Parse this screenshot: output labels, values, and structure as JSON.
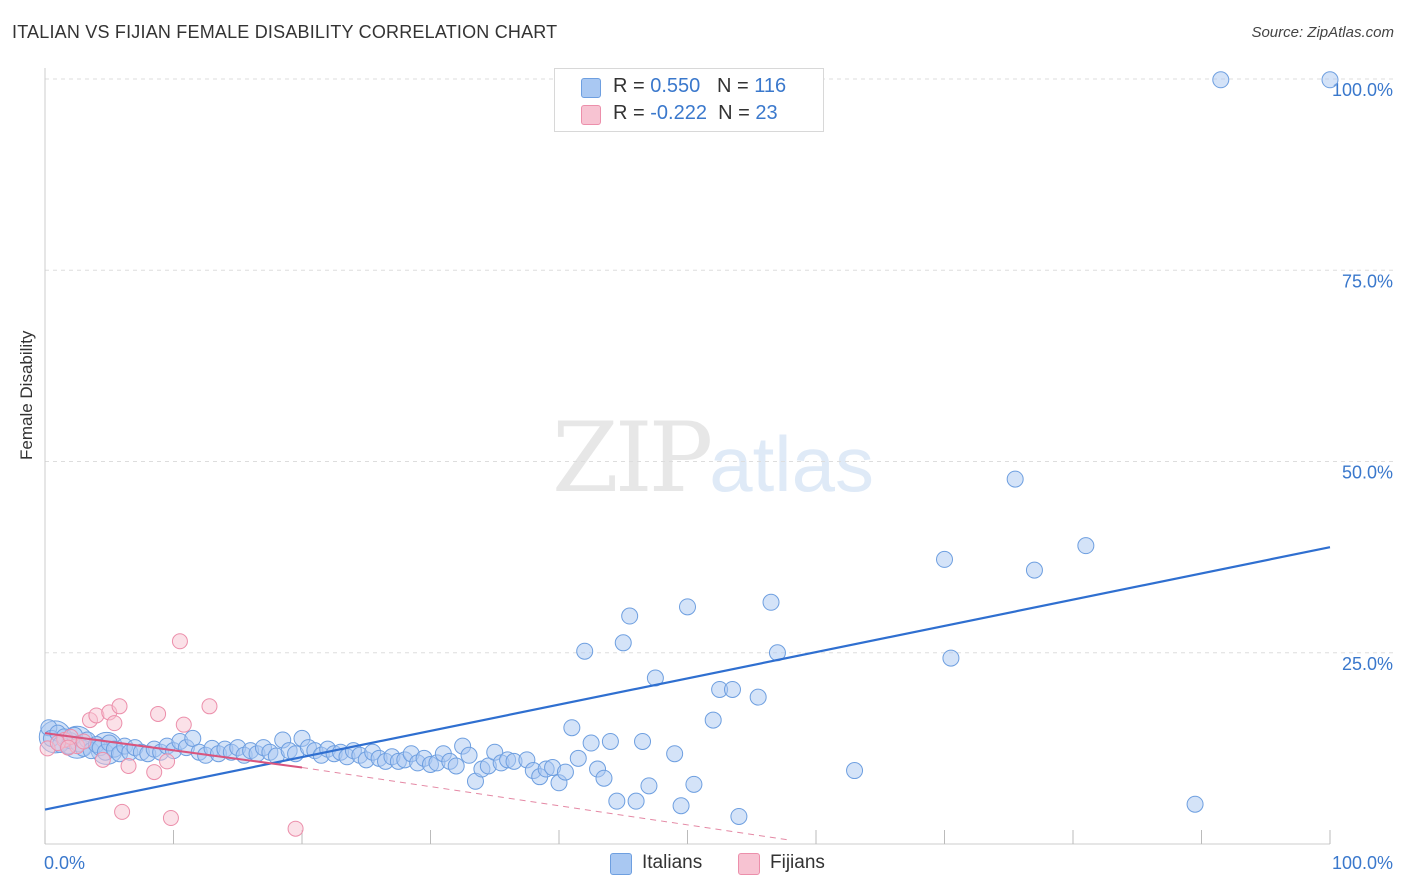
{
  "title": "ITALIAN VS FIJIAN FEMALE DISABILITY CORRELATION CHART",
  "source": "Source: ZipAtlas.com",
  "watermark": {
    "zip": "ZIP",
    "atlas": "atlas"
  },
  "legend": {
    "rows": [
      {
        "r_label": "R = ",
        "r_value": "0.550",
        "n_label": "N = ",
        "n_value": "116",
        "color": "#a9c8f2",
        "border": "#6e9fe0"
      },
      {
        "r_label": "R = ",
        "r_value": "-0.222",
        "n_label": "N = ",
        "n_value": "23",
        "color": "#f7c3d2",
        "border": "#ec8fab"
      }
    ]
  },
  "bottom_legend": [
    {
      "label": "Italians",
      "color": "#a9c8f2",
      "border": "#6e9fe0"
    },
    {
      "label": "Fijians",
      "color": "#f7c3d2",
      "border": "#ec8fab"
    }
  ],
  "chart_data": {
    "type": "scatter",
    "title": "ITALIAN VS FIJIAN FEMALE DISABILITY CORRELATION CHART",
    "xlabel": "",
    "ylabel": "Female Disability",
    "xlim": [
      0,
      100
    ],
    "ylim": [
      0,
      100
    ],
    "x_tick_labels": [
      "0.0%",
      "100.0%"
    ],
    "y_tick_labels": [
      {
        "value": 25,
        "label": "25.0%"
      },
      {
        "value": 50,
        "label": "50.0%"
      },
      {
        "value": 75,
        "label": "75.0%"
      },
      {
        "value": 100,
        "label": "100.0%"
      }
    ],
    "series": [
      {
        "name": "Italians",
        "color": "#6e9fe0",
        "fill": "#a9c8f2",
        "trend": {
          "x": [
            0,
            100
          ],
          "y": [
            4.5,
            38.8
          ],
          "color": "#2f6fd0"
        },
        "points": [
          [
            0.3,
            15.2
          ],
          [
            0.5,
            13.8
          ],
          [
            1.0,
            14.5
          ],
          [
            1.2,
            13.0
          ],
          [
            1.5,
            14.0
          ],
          [
            1.8,
            12.8
          ],
          [
            2.0,
            13.5
          ],
          [
            2.3,
            14.2
          ],
          [
            2.6,
            13.1
          ],
          [
            3.0,
            12.5
          ],
          [
            3.3,
            13.6
          ],
          [
            3.6,
            12.2
          ],
          [
            4.0,
            13.0
          ],
          [
            4.3,
            12.6
          ],
          [
            4.7,
            12.0
          ],
          [
            5.0,
            13.2
          ],
          [
            5.4,
            12.4
          ],
          [
            5.8,
            11.8
          ],
          [
            6.2,
            12.8
          ],
          [
            6.6,
            12.0
          ],
          [
            7.0,
            12.6
          ],
          [
            7.5,
            12.0
          ],
          [
            8.0,
            11.8
          ],
          [
            8.5,
            12.4
          ],
          [
            9.0,
            12.0
          ],
          [
            9.5,
            12.8
          ],
          [
            10.0,
            12.2
          ],
          [
            10.5,
            13.4
          ],
          [
            11.0,
            12.6
          ],
          [
            11.5,
            13.8
          ],
          [
            12.0,
            12.0
          ],
          [
            12.5,
            11.6
          ],
          [
            13.0,
            12.5
          ],
          [
            13.5,
            11.8
          ],
          [
            14.0,
            12.4
          ],
          [
            14.5,
            12.0
          ],
          [
            15.0,
            12.6
          ],
          [
            15.5,
            11.6
          ],
          [
            16.0,
            12.2
          ],
          [
            16.5,
            11.8
          ],
          [
            17.0,
            12.6
          ],
          [
            17.5,
            12.0
          ],
          [
            18.0,
            11.5
          ],
          [
            18.5,
            13.6
          ],
          [
            19.0,
            12.2
          ],
          [
            19.5,
            11.8
          ],
          [
            20.0,
            13.8
          ],
          [
            20.5,
            12.6
          ],
          [
            21.0,
            12.2
          ],
          [
            21.5,
            11.6
          ],
          [
            22.0,
            12.4
          ],
          [
            22.5,
            11.8
          ],
          [
            23.0,
            12.0
          ],
          [
            23.5,
            11.4
          ],
          [
            24.0,
            12.2
          ],
          [
            24.5,
            11.6
          ],
          [
            25.0,
            11.0
          ],
          [
            25.5,
            12.0
          ],
          [
            26.0,
            11.2
          ],
          [
            26.5,
            10.8
          ],
          [
            27.0,
            11.4
          ],
          [
            27.5,
            10.8
          ],
          [
            28.0,
            11.0
          ],
          [
            28.5,
            11.8
          ],
          [
            29.0,
            10.6
          ],
          [
            29.5,
            11.2
          ],
          [
            30.0,
            10.4
          ],
          [
            30.5,
            10.6
          ],
          [
            31.0,
            11.8
          ],
          [
            31.5,
            10.8
          ],
          [
            32.0,
            10.2
          ],
          [
            32.5,
            12.8
          ],
          [
            33.0,
            11.6
          ],
          [
            33.5,
            8.2
          ],
          [
            34.0,
            9.8
          ],
          [
            34.5,
            10.2
          ],
          [
            35.0,
            12.0
          ],
          [
            35.5,
            10.6
          ],
          [
            36.0,
            11.0
          ],
          [
            36.5,
            10.8
          ],
          [
            37.5,
            11.0
          ],
          [
            38.0,
            9.6
          ],
          [
            38.5,
            8.8
          ],
          [
            39.0,
            9.8
          ],
          [
            39.5,
            10.0
          ],
          [
            40.0,
            8.0
          ],
          [
            40.5,
            9.4
          ],
          [
            41.0,
            15.2
          ],
          [
            41.5,
            11.2
          ],
          [
            42.0,
            25.2
          ],
          [
            42.5,
            13.2
          ],
          [
            43.0,
            9.8
          ],
          [
            43.5,
            8.6
          ],
          [
            44.0,
            13.4
          ],
          [
            44.5,
            5.6
          ],
          [
            45.0,
            26.3
          ],
          [
            45.5,
            29.8
          ],
          [
            46.0,
            5.6
          ],
          [
            46.5,
            13.4
          ],
          [
            47.0,
            7.6
          ],
          [
            47.5,
            21.7
          ],
          [
            49.0,
            11.8
          ],
          [
            49.5,
            5.0
          ],
          [
            50.0,
            31.0
          ],
          [
            50.5,
            7.8
          ],
          [
            52.0,
            16.2
          ],
          [
            52.5,
            20.2
          ],
          [
            53.5,
            20.2
          ],
          [
            54.0,
            3.6
          ],
          [
            55.5,
            19.2
          ],
          [
            56.5,
            31.6
          ],
          [
            57.0,
            25.0
          ],
          [
            63.0,
            9.6
          ],
          [
            70.0,
            37.2
          ],
          [
            70.5,
            24.3
          ],
          [
            75.5,
            47.7
          ],
          [
            77.0,
            35.8
          ],
          [
            81.0,
            39.0
          ],
          [
            89.5,
            5.2
          ],
          [
            91.5,
            99.9
          ],
          [
            100.0,
            99.9
          ]
        ],
        "big_points": [
          [
            0.8,
            14.0
          ],
          [
            2.5,
            13.3
          ],
          [
            4.8,
            12.5
          ]
        ]
      },
      {
        "name": "Fijians",
        "color": "#ec8fab",
        "fill": "#f7c3d2",
        "trend": {
          "x": [
            0,
            20
          ],
          "y": [
            14.5,
            10.0
          ],
          "dashed_to": [
            58,
            0.5
          ],
          "color": "#d9557e"
        },
        "points": [
          [
            0.2,
            12.5
          ],
          [
            1.5,
            13.6
          ],
          [
            2.5,
            12.8
          ],
          [
            3.5,
            16.2
          ],
          [
            4.0,
            16.8
          ],
          [
            4.5,
            11.0
          ],
          [
            5.0,
            17.2
          ],
          [
            5.4,
            15.8
          ],
          [
            5.8,
            18.0
          ],
          [
            6.0,
            4.2
          ],
          [
            6.5,
            10.2
          ],
          [
            8.5,
            9.4
          ],
          [
            8.8,
            17.0
          ],
          [
            9.5,
            10.8
          ],
          [
            9.8,
            3.4
          ],
          [
            10.5,
            26.5
          ],
          [
            10.8,
            15.6
          ],
          [
            12.8,
            18.0
          ],
          [
            19.5,
            2.0
          ],
          [
            1.0,
            13.2
          ],
          [
            2.0,
            14.0
          ],
          [
            3.0,
            13.4
          ],
          [
            1.8,
            12.6
          ]
        ]
      }
    ]
  }
}
